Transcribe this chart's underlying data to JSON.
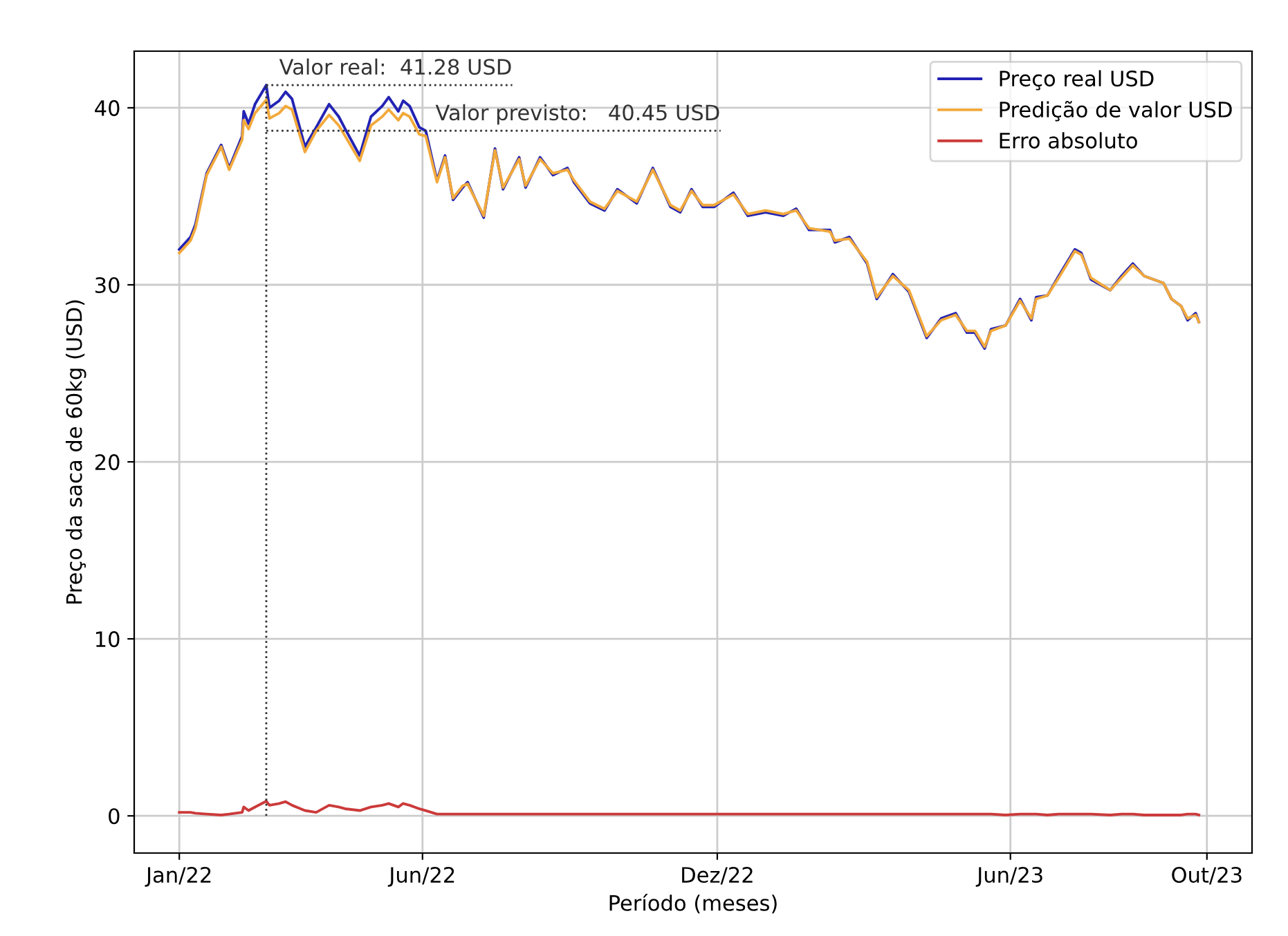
{
  "chart_data": {
    "type": "line",
    "xlabel": "Período (meses)",
    "ylabel": "Preço da saca de 60kg (USD)",
    "x": [
      "2022-01-01",
      "2022-01-08",
      "2022-01-11",
      "2022-01-18",
      "2022-01-27",
      "2022-02-01",
      "2022-02-09",
      "2022-02-10",
      "2022-02-13",
      "2022-02-17",
      "2022-02-24",
      "2022-02-26",
      "2022-03-04",
      "2022-03-08",
      "2022-03-12",
      "2022-03-20",
      "2022-03-27",
      "2022-04-04",
      "2022-04-10",
      "2022-04-14",
      "2022-04-23",
      "2022-04-30",
      "2022-05-07",
      "2022-05-11",
      "2022-05-17",
      "2022-05-20",
      "2022-05-24",
      "2022-05-30",
      "2022-06-03",
      "2022-06-10",
      "2022-06-15",
      "2022-06-20",
      "2022-06-26",
      "2022-06-29",
      "2022-07-09",
      "2022-07-16",
      "2022-07-21",
      "2022-07-31",
      "2022-08-04",
      "2022-08-13",
      "2022-08-21",
      "2022-08-30",
      "2022-09-03",
      "2022-09-13",
      "2022-09-22",
      "2022-09-30",
      "2022-10-12",
      "2022-10-22",
      "2022-11-02",
      "2022-11-08",
      "2022-11-15",
      "2022-11-22",
      "2022-11-29",
      "2022-12-11",
      "2022-12-20",
      "2022-12-31",
      "2023-01-11",
      "2023-01-19",
      "2023-01-27",
      "2023-02-09",
      "2023-02-12",
      "2023-02-21",
      "2023-03-04",
      "2023-03-10",
      "2023-03-20",
      "2023-03-30",
      "2023-04-10",
      "2023-04-19",
      "2023-04-28",
      "2023-05-05",
      "2023-05-10",
      "2023-05-16",
      "2023-05-20",
      "2023-05-29",
      "2023-06-07",
      "2023-06-14",
      "2023-06-17",
      "2023-06-24",
      "2023-07-01",
      "2023-07-11",
      "2023-07-15",
      "2023-07-21",
      "2023-08-02",
      "2023-08-09",
      "2023-08-16",
      "2023-08-23",
      "2023-09-04",
      "2023-09-09",
      "2023-09-15",
      "2023-09-19",
      "2023-09-24",
      "2023-09-26"
    ],
    "series": [
      {
        "name": "Preço real USD",
        "color": "#2323b4",
        "values": [
          32.0,
          32.7,
          33.4,
          36.3,
          37.9,
          36.6,
          38.4,
          39.8,
          39.1,
          40.2,
          41.28,
          40.0,
          40.4,
          40.9,
          40.5,
          37.8,
          38.9,
          40.2,
          39.5,
          38.8,
          37.3,
          39.5,
          40.1,
          40.6,
          39.8,
          40.4,
          40.1,
          38.9,
          38.7,
          35.9,
          37.3,
          34.8,
          35.5,
          35.8,
          33.8,
          37.7,
          35.4,
          37.2,
          35.5,
          37.2,
          36.2,
          36.6,
          35.8,
          34.6,
          34.2,
          35.4,
          34.6,
          36.6,
          34.4,
          34.1,
          35.4,
          34.4,
          34.4,
          35.2,
          33.9,
          34.1,
          33.9,
          34.3,
          33.1,
          33.1,
          32.4,
          32.7,
          31.2,
          29.2,
          30.6,
          29.6,
          27.0,
          28.1,
          28.4,
          27.3,
          27.3,
          26.4,
          27.5,
          27.7,
          29.2,
          28.0,
          29.3,
          29.4,
          30.5,
          32.0,
          31.8,
          30.3,
          29.7,
          30.5,
          31.2,
          30.5,
          30.1,
          29.2,
          28.8,
          28.0,
          28.4,
          27.9
        ]
      },
      {
        "name": "Predição de valor USD",
        "color": "#f2a93b",
        "values": [
          31.8,
          32.5,
          33.2,
          36.2,
          37.8,
          36.5,
          38.2,
          39.3,
          38.8,
          39.7,
          40.45,
          39.4,
          39.7,
          40.1,
          39.9,
          37.5,
          38.7,
          39.6,
          39.0,
          38.4,
          37.0,
          39.0,
          39.5,
          39.9,
          39.3,
          39.7,
          39.5,
          38.5,
          38.4,
          35.8,
          37.2,
          34.9,
          35.6,
          35.7,
          33.9,
          37.6,
          35.5,
          37.1,
          35.6,
          37.1,
          36.3,
          36.5,
          35.9,
          34.7,
          34.3,
          35.3,
          34.7,
          36.5,
          34.5,
          34.2,
          35.3,
          34.5,
          34.5,
          35.1,
          34.0,
          34.2,
          34.0,
          34.2,
          33.2,
          33.0,
          32.5,
          32.6,
          31.3,
          29.3,
          30.5,
          29.7,
          27.1,
          28.0,
          28.3,
          27.4,
          27.4,
          26.5,
          27.4,
          27.7,
          29.1,
          28.1,
          29.2,
          29.4,
          30.4,
          31.9,
          31.7,
          30.4,
          29.7,
          30.4,
          31.1,
          30.5,
          30.1,
          29.2,
          28.8,
          28.1,
          28.3,
          27.9
        ]
      },
      {
        "name": "Erro absoluto",
        "color": "#cc3a3a",
        "values": [
          0.2,
          0.2,
          0.15,
          0.1,
          0.05,
          0.1,
          0.2,
          0.5,
          0.3,
          0.5,
          0.83,
          0.6,
          0.7,
          0.8,
          0.6,
          0.3,
          0.2,
          0.6,
          0.5,
          0.4,
          0.3,
          0.5,
          0.6,
          0.7,
          0.5,
          0.7,
          0.6,
          0.4,
          0.3,
          0.1,
          0.1,
          0.1,
          0.1,
          0.1,
          0.1,
          0.1,
          0.1,
          0.1,
          0.1,
          0.1,
          0.1,
          0.1,
          0.1,
          0.1,
          0.1,
          0.1,
          0.1,
          0.1,
          0.1,
          0.1,
          0.1,
          0.1,
          0.1,
          0.1,
          0.1,
          0.1,
          0.1,
          0.1,
          0.1,
          0.1,
          0.1,
          0.1,
          0.1,
          0.1,
          0.1,
          0.1,
          0.1,
          0.1,
          0.1,
          0.1,
          0.1,
          0.1,
          0.1,
          0.05,
          0.1,
          0.1,
          0.1,
          0.05,
          0.1,
          0.1,
          0.1,
          0.1,
          0.05,
          0.1,
          0.1,
          0.05,
          0.05,
          0.05,
          0.05,
          0.1,
          0.1,
          0.05
        ]
      }
    ],
    "annotations": [
      {
        "text": "Valor real:  41.28 USD",
        "x": "2022-02-24",
        "y": 41.28
      },
      "Valor previsto:   40.45 USD"
    ],
    "ref_lines": [
      {
        "axis": "x",
        "value": "2022-02-24",
        "color": "#333333",
        "line_style": "dotted"
      },
      {
        "axis": "y",
        "value": 38.7,
        "color": "#333333",
        "line_style": "dotted"
      }
    ],
    "xlim": [
      "2021-12-04",
      "2023-10-29"
    ],
    "xticks": [
      {
        "value": "2022-01-01",
        "label": "Jan/22"
      },
      {
        "value": "2022-06-01",
        "label": "Jun/22"
      },
      {
        "value": "2022-12-01",
        "label": "Dez/22"
      },
      {
        "value": "2023-06-01",
        "label": "Jun/23"
      },
      {
        "value": "2023-10-01",
        "label": "Out/23"
      }
    ],
    "ylim": [
      -2.1,
      43.2
    ],
    "yticks": [
      0,
      10,
      20,
      30,
      40
    ],
    "grid": true,
    "legend": "top right",
    "marker": "none",
    "line_style": "solid"
  }
}
